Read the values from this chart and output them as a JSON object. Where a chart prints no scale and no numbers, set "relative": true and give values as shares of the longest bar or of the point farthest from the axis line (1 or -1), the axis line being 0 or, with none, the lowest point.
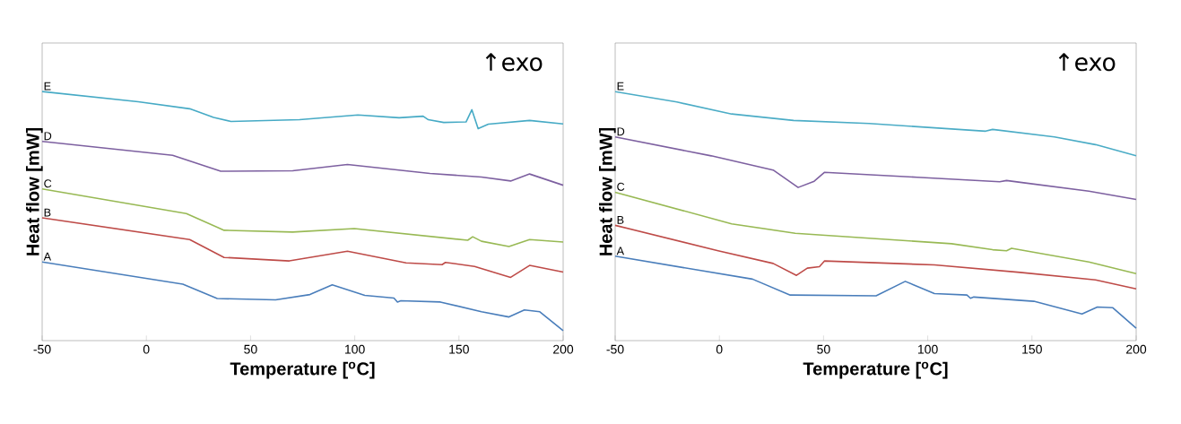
{
  "chart_data": [
    {
      "type": "line",
      "relative": true,
      "xlabel": "Temperature [$^{o}$C]",
      "ylabel": "Heat flow [mW]",
      "xlim": [
        -50,
        200
      ],
      "xticks": [
        -50,
        0,
        50,
        100,
        150,
        200
      ],
      "annotations": [
        "↑exo"
      ],
      "series": [
        {
          "name": "A",
          "color": "#4a7ebb",
          "x": [
            -50,
            17.5,
            34.0,
            62.0,
            78.5,
            89.2,
            104.8,
            118.8,
            120.5,
            122.1,
            141.1,
            160.8,
            174.0,
            181.4,
            188.8,
            200
          ],
          "values": [
            0.316,
            0.227,
            0.169,
            0.164,
            0.185,
            0.224,
            0.182,
            0.171,
            0.155,
            0.16,
            0.155,
            0.116,
            0.095,
            0.123,
            0.116,
            0.04
          ]
        },
        {
          "name": "B",
          "color": "#be4b48",
          "x": [
            -50,
            20.8,
            37.3,
            68.6,
            96.5,
            124.6,
            141.9,
            143.5,
            157.5,
            174.8,
            183.9,
            200
          ],
          "values": [
            0.493,
            0.406,
            0.334,
            0.32,
            0.359,
            0.312,
            0.305,
            0.314,
            0.298,
            0.254,
            0.302,
            0.275
          ]
        },
        {
          "name": "C",
          "color": "#98b954",
          "x": [
            -50,
            19.2,
            37.3,
            70.2,
            99.8,
            154.2,
            156.6,
            160.8,
            174.0,
            183.9,
            200
          ],
          "values": [
            0.609,
            0.51,
            0.443,
            0.436,
            0.45,
            0.403,
            0.417,
            0.399,
            0.378,
            0.406,
            0.396
          ]
        },
        {
          "name": "D",
          "color": "#7d60a0",
          "x": [
            -50,
            12.6,
            35.7,
            70.2,
            96.5,
            136.1,
            160.8,
            174.8,
            183.9,
            200
          ],
          "values": [
            0.8,
            0.744,
            0.68,
            0.682,
            0.707,
            0.671,
            0.657,
            0.641,
            0.669,
            0.624
          ]
        },
        {
          "name": "E",
          "color": "#46aac5",
          "x": [
            -50,
            -3.9,
            20.8,
            32.3,
            40.6,
            73.5,
            101.5,
            121.3,
            132.8,
            135.3,
            142.7,
            153.4,
            156.2,
            159.2,
            164.1,
            183.9,
            200
          ],
          "values": [
            1.0,
            0.959,
            0.931,
            0.896,
            0.88,
            0.887,
            0.906,
            0.895,
            0.901,
            0.887,
            0.876,
            0.878,
            0.927,
            0.851,
            0.869,
            0.884,
            0.87
          ]
        }
      ]
    },
    {
      "type": "line",
      "relative": true,
      "xlabel": "Temperature [$^{o}$C]",
      "ylabel": "Heat flow [mW]",
      "xlim": [
        -50,
        200
      ],
      "xticks": [
        -50,
        0,
        50,
        100,
        150,
        200
      ],
      "annotations": [
        "↑exo"
      ],
      "series": [
        {
          "name": "A",
          "color": "#4a7ebb",
          "x": [
            -50,
            15.9,
            34.0,
            75.2,
            89.2,
            103.2,
            118.8,
            120.5,
            122.1,
            150.9,
            174.0,
            181.4,
            188.8,
            200
          ],
          "values": [
            0.339,
            0.247,
            0.183,
            0.18,
            0.238,
            0.189,
            0.183,
            0.17,
            0.175,
            0.158,
            0.107,
            0.135,
            0.132,
            0.05
          ]
        },
        {
          "name": "B",
          "color": "#be4b48",
          "x": [
            -50,
            -0.6,
            25.8,
            37.0,
            42.2,
            48.0,
            50.5,
            103.2,
            144.3,
            180.5,
            200
          ],
          "values": [
            0.463,
            0.361,
            0.31,
            0.262,
            0.291,
            0.297,
            0.32,
            0.304,
            0.274,
            0.244,
            0.208
          ]
        },
        {
          "name": "C",
          "color": "#98b954",
          "x": [
            -50,
            5.9,
            36.4,
            70.2,
            111.4,
            131.1,
            137.8,
            140.2,
            177.3,
            200
          ],
          "values": [
            0.596,
            0.469,
            0.431,
            0.412,
            0.389,
            0.365,
            0.361,
            0.371,
            0.316,
            0.269
          ]
        },
        {
          "name": "D",
          "color": "#7d60a0",
          "x": [
            -50,
            -3.9,
            25.8,
            37.8,
            45.5,
            50.5,
            94.9,
            134.5,
            137.8,
            146.0,
            177.3,
            200
          ],
          "values": [
            0.818,
            0.742,
            0.685,
            0.615,
            0.64,
            0.676,
            0.656,
            0.638,
            0.643,
            0.634,
            0.6,
            0.567
          ]
        },
        {
          "name": "E",
          "color": "#4bacc6",
          "x": [
            -50,
            -20.4,
            5.9,
            35.6,
            71.8,
            127.8,
            131.1,
            160.8,
            180.5,
            200
          ],
          "values": [
            1.0,
            0.958,
            0.91,
            0.884,
            0.872,
            0.841,
            0.848,
            0.818,
            0.787,
            0.742
          ]
        }
      ]
    }
  ]
}
